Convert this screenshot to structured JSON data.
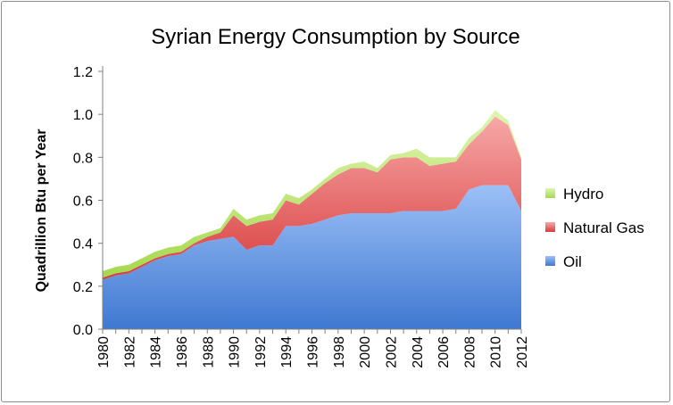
{
  "chart_data": {
    "type": "area",
    "stacked": true,
    "title": "Syrian Energy Consumption by Source",
    "xlabel": "",
    "ylabel": "Quadrillion Btu per Year",
    "ylim": [
      0,
      1.2
    ],
    "yticks": [
      "0.0",
      "0.2",
      "0.4",
      "0.6",
      "0.8",
      "1.0",
      "1.2"
    ],
    "x": [
      1980,
      1981,
      1982,
      1983,
      1984,
      1985,
      1986,
      1987,
      1988,
      1989,
      1990,
      1991,
      1992,
      1993,
      1994,
      1995,
      1996,
      1997,
      1998,
      1999,
      2000,
      2001,
      2002,
      2003,
      2004,
      2005,
      2006,
      2007,
      2008,
      2009,
      2010,
      2011,
      2012
    ],
    "xticks": [
      "1980",
      "1982",
      "1984",
      "1986",
      "1988",
      "1990",
      "1992",
      "1994",
      "1996",
      "1998",
      "2000",
      "2002",
      "2004",
      "2006",
      "2008",
      "2010",
      "2012"
    ],
    "grid": false,
    "legend_position": "right",
    "series": [
      {
        "name": "Oil",
        "color": "#5b8fd8",
        "values": [
          0.23,
          0.25,
          0.26,
          0.29,
          0.32,
          0.34,
          0.35,
          0.39,
          0.41,
          0.42,
          0.43,
          0.37,
          0.39,
          0.39,
          0.48,
          0.48,
          0.49,
          0.51,
          0.53,
          0.54,
          0.54,
          0.54,
          0.54,
          0.55,
          0.55,
          0.55,
          0.55,
          0.56,
          0.65,
          0.67,
          0.67,
          0.67,
          0.55
        ]
      },
      {
        "name": "Natural Gas",
        "color": "#e05a5a",
        "values": [
          0.01,
          0.01,
          0.01,
          0.01,
          0.01,
          0.01,
          0.01,
          0.01,
          0.02,
          0.03,
          0.1,
          0.11,
          0.11,
          0.12,
          0.12,
          0.1,
          0.14,
          0.17,
          0.19,
          0.21,
          0.21,
          0.19,
          0.25,
          0.25,
          0.25,
          0.21,
          0.22,
          0.22,
          0.21,
          0.25,
          0.32,
          0.28,
          0.24
        ]
      },
      {
        "name": "Hydro",
        "color": "#b8e06a",
        "values": [
          0.03,
          0.03,
          0.03,
          0.03,
          0.03,
          0.03,
          0.03,
          0.03,
          0.02,
          0.02,
          0.03,
          0.03,
          0.03,
          0.03,
          0.03,
          0.03,
          0.02,
          0.02,
          0.03,
          0.02,
          0.03,
          0.02,
          0.02,
          0.02,
          0.04,
          0.04,
          0.03,
          0.02,
          0.03,
          0.02,
          0.03,
          0.02,
          0.01
        ]
      }
    ]
  }
}
